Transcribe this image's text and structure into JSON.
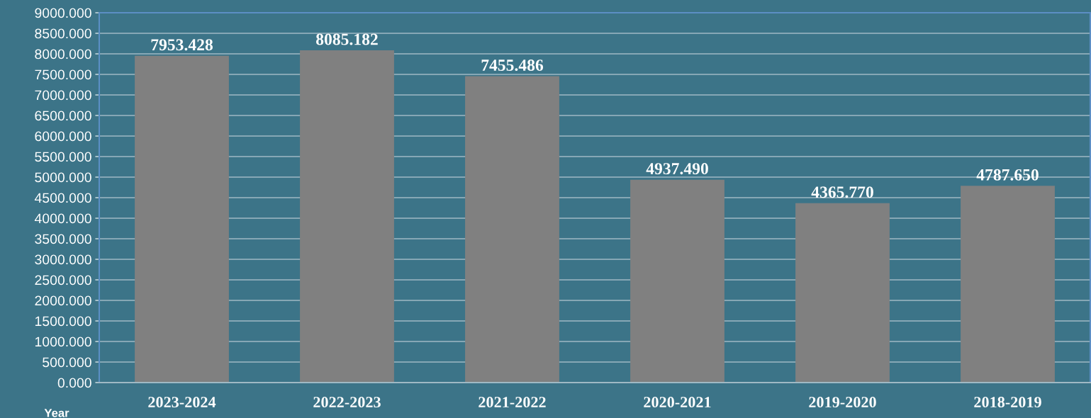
{
  "chart_data": {
    "type": "bar",
    "xlabel": "Year",
    "categories": [
      "2023-2024",
      "2022-2023",
      "2021-2022",
      "2020-2021",
      "2019-2020",
      "2018-2019"
    ],
    "values": [
      7953.428,
      8085.182,
      7455.486,
      4937.49,
      4365.77,
      4787.65
    ],
    "value_labels": [
      "7953.428",
      "8085.182",
      "7455.486",
      "4937.490",
      "4365.770",
      "4787.650"
    ],
    "color": "#808080",
    "ylim": [
      0,
      9000
    ],
    "yticks": [
      {
        "value": 0,
        "label": "0.000"
      },
      {
        "value": 500,
        "label": "500.000"
      },
      {
        "value": 1000,
        "label": "1000.000"
      },
      {
        "value": 1500,
        "label": "1500.000"
      },
      {
        "value": 2000,
        "label": "2000.000"
      },
      {
        "value": 2500,
        "label": "2500.000"
      },
      {
        "value": 3000,
        "label": "3000.000"
      },
      {
        "value": 3500,
        "label": "3500.000"
      },
      {
        "value": 4000,
        "label": "4000.000"
      },
      {
        "value": 4500,
        "label": "4500.000"
      },
      {
        "value": 5000,
        "label": "5000.000"
      },
      {
        "value": 5500,
        "label": "5500.000"
      },
      {
        "value": 6000,
        "label": "6000.000"
      },
      {
        "value": 6500,
        "label": "6500.000"
      },
      {
        "value": 7000,
        "label": "7000.000"
      },
      {
        "value": 7500,
        "label": "7500.000"
      },
      {
        "value": 8000,
        "label": "8000.000"
      },
      {
        "value": 8500,
        "label": "8500.000"
      },
      {
        "value": 9000,
        "label": "9000.000"
      }
    ],
    "grid": "y"
  }
}
